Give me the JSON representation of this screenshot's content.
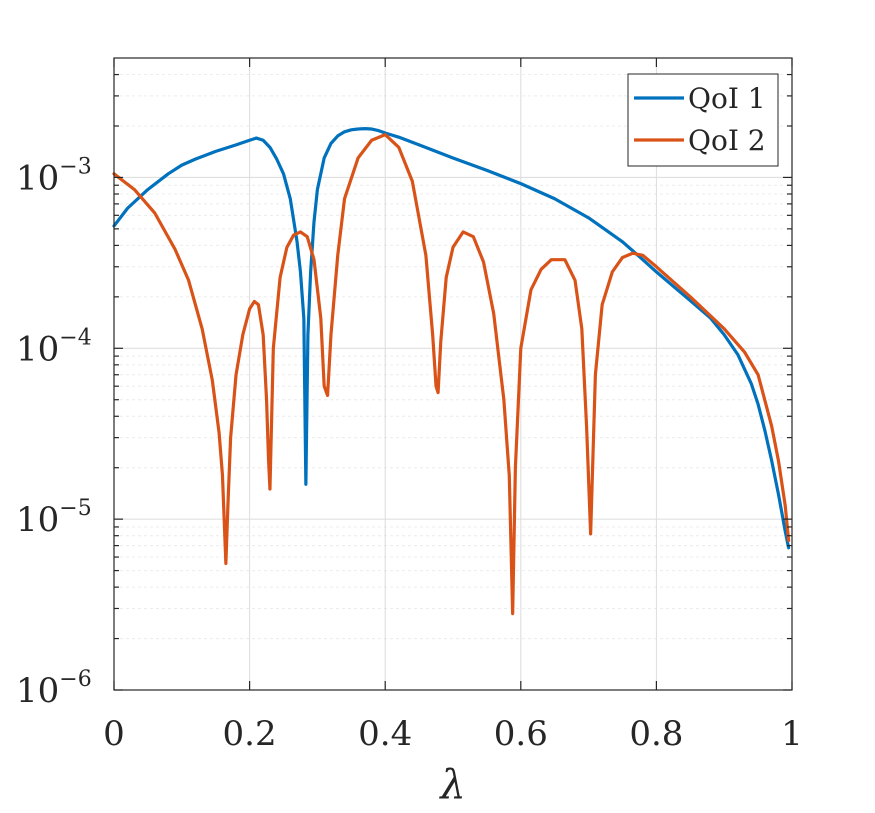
{
  "chart_data": {
    "type": "line",
    "title": "",
    "xlabel": "λ",
    "ylabel": "",
    "xlim": [
      0,
      1
    ],
    "ylim": [
      1e-06,
      0.005
    ],
    "yscale": "log",
    "grid": true,
    "legend_position": "top-right",
    "x_ticks": [
      0,
      0.2,
      0.4,
      0.6,
      0.8,
      1
    ],
    "x_tick_labels": [
      "0",
      "0.2",
      "0.4",
      "0.6",
      "0.8",
      "1"
    ],
    "y_ticks": [
      1e-06,
      1e-05,
      0.0001,
      0.001
    ],
    "y_tick_labels": [
      {
        "base": "10",
        "exp": "−6"
      },
      {
        "base": "10",
        "exp": "−5"
      },
      {
        "base": "10",
        "exp": "−4"
      },
      {
        "base": "10",
        "exp": "−3"
      }
    ],
    "series": [
      {
        "name": "QoI 1",
        "color": "#0072BD",
        "x": [
          0,
          0.02,
          0.05,
          0.08,
          0.1,
          0.12,
          0.15,
          0.18,
          0.2,
          0.21,
          0.22,
          0.23,
          0.24,
          0.25,
          0.26,
          0.27,
          0.275,
          0.28,
          0.283,
          0.286,
          0.29,
          0.295,
          0.3,
          0.31,
          0.32,
          0.33,
          0.34,
          0.35,
          0.36,
          0.37,
          0.38,
          0.39,
          0.4,
          0.42,
          0.45,
          0.5,
          0.55,
          0.6,
          0.65,
          0.7,
          0.75,
          0.78,
          0.8,
          0.85,
          0.88,
          0.9,
          0.92,
          0.94,
          0.95,
          0.96,
          0.97,
          0.98,
          0.99,
          0.995
        ],
        "y": [
          0.00052,
          0.00066,
          0.00085,
          0.00105,
          0.00118,
          0.00128,
          0.00142,
          0.00155,
          0.00165,
          0.0017,
          0.00165,
          0.0015,
          0.00128,
          0.00105,
          0.00075,
          0.00042,
          0.00028,
          0.00015,
          1.6e-05,
          0.00012,
          0.00028,
          0.00055,
          0.00085,
          0.0013,
          0.00158,
          0.00175,
          0.00185,
          0.0019,
          0.00192,
          0.00193,
          0.00192,
          0.00188,
          0.00182,
          0.00172,
          0.00155,
          0.0013,
          0.0011,
          0.00092,
          0.00075,
          0.00058,
          0.00042,
          0.00033,
          0.00028,
          0.00019,
          0.00015,
          0.00012,
          9.2e-05,
          6.2e-05,
          4.7e-05,
          3.3e-05,
          2.2e-05,
          1.4e-05,
          8.5e-06,
          6.8e-06
        ]
      },
      {
        "name": "QoI 2",
        "color": "#D95319",
        "x": [
          0,
          0.03,
          0.06,
          0.09,
          0.11,
          0.13,
          0.145,
          0.155,
          0.16,
          0.165,
          0.168,
          0.172,
          0.18,
          0.19,
          0.2,
          0.207,
          0.213,
          0.22,
          0.225,
          0.228,
          0.23,
          0.235,
          0.245,
          0.255,
          0.265,
          0.275,
          0.285,
          0.295,
          0.305,
          0.31,
          0.315,
          0.32,
          0.33,
          0.34,
          0.36,
          0.38,
          0.4,
          0.42,
          0.44,
          0.46,
          0.47,
          0.475,
          0.478,
          0.482,
          0.49,
          0.5,
          0.515,
          0.53,
          0.545,
          0.56,
          0.575,
          0.583,
          0.588,
          0.592,
          0.6,
          0.615,
          0.63,
          0.645,
          0.665,
          0.68,
          0.69,
          0.697,
          0.703,
          0.71,
          0.72,
          0.735,
          0.75,
          0.765,
          0.78,
          0.8,
          0.85,
          0.9,
          0.93,
          0.95,
          0.97,
          0.98,
          0.99,
          0.995
        ],
        "y": [
          0.00105,
          0.00085,
          0.00062,
          0.00038,
          0.00025,
          0.00013,
          6.5e-05,
          3.2e-05,
          1.8e-05,
          5.5e-06,
          1.2e-05,
          3e-05,
          7e-05,
          0.00012,
          0.00017,
          0.000188,
          0.00018,
          0.00012,
          5e-05,
          2.2e-05,
          1.5e-05,
          0.0001,
          0.00026,
          0.00039,
          0.00046,
          0.00048,
          0.00045,
          0.00033,
          0.00015,
          6e-05,
          5.3e-05,
          0.00012,
          0.00035,
          0.00075,
          0.0013,
          0.00165,
          0.00178,
          0.0015,
          0.00095,
          0.00035,
          0.00012,
          6e-05,
          5.5e-05,
          0.00011,
          0.00026,
          0.00039,
          0.00048,
          0.00045,
          0.00032,
          0.00016,
          5e-05,
          1.8e-05,
          2.8e-06,
          2e-05,
          0.0001,
          0.00022,
          0.00029,
          0.00033,
          0.00033,
          0.00025,
          0.00013,
          3.5e-05,
          8.2e-06,
          7e-05,
          0.00018,
          0.00028,
          0.00034,
          0.00036,
          0.00035,
          0.0003,
          0.0002,
          0.00013,
          9.5e-05,
          7e-05,
          3.5e-05,
          2.2e-05,
          1.2e-05,
          7.5e-06
        ]
      }
    ]
  }
}
